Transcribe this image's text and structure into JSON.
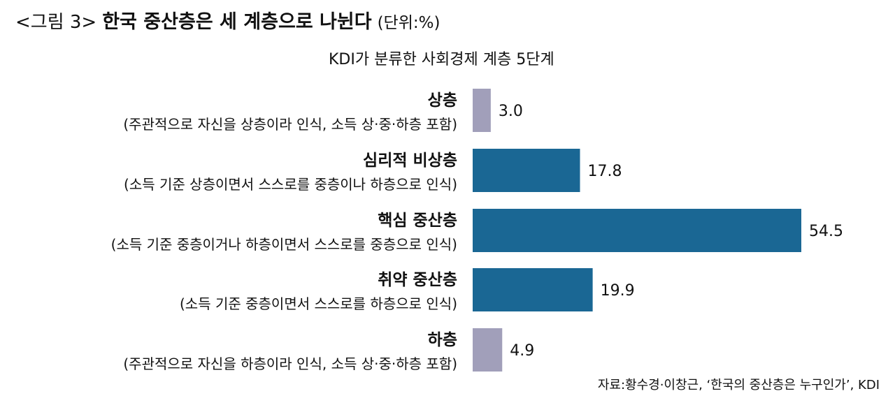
{
  "header": {
    "figure_label": "<그림 3>",
    "title": "한국 중산층은 세 계층으로 나뉜다",
    "unit": "(단위:%)"
  },
  "chart_data": {
    "type": "bar",
    "orientation": "horizontal",
    "title": "KDI가 분류한 사회경제 계층 5단계",
    "categories": [
      "상층",
      "심리적 비상층",
      "핵심 중산층",
      "취약 중산층",
      "하층"
    ],
    "category_descriptions": [
      "(주관적으로 자신을 상층이라 인식, 소득 상·중·하층 포함)",
      "(소득 기준 상층이면서 스스로를 중층이나 하층으로 인식)",
      "(소득 기준 중층이거나 하층이면서 스스로를 중층으로 인식)",
      "(소득 기준 중층이면서 스스로를 하층으로 인식)",
      "(주관적으로 자신을 하층이라 인식, 소득 상·중·하층 포함)"
    ],
    "values": [
      3.0,
      17.8,
      54.5,
      19.9,
      4.9
    ],
    "value_labels": [
      "3.0",
      "17.8",
      "54.5",
      "19.9",
      "4.9"
    ],
    "bar_colors": [
      "#a19fba",
      "#1a6794",
      "#1a6794",
      "#1a6794",
      "#a19fba"
    ],
    "xlim": [
      0,
      54.5
    ],
    "grid": false,
    "legend": "none"
  },
  "source": "자료:황수경·이창근, ‘한국의 중산층은 누구인가’, KDI"
}
